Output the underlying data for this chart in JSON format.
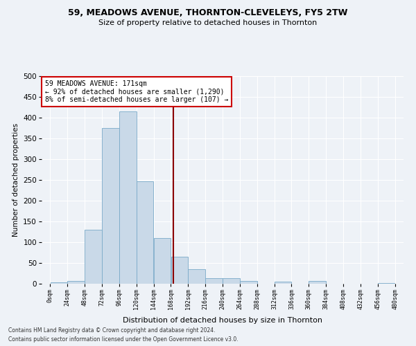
{
  "title1": "59, MEADOWS AVENUE, THORNTON-CLEVELEYS, FY5 2TW",
  "title2": "Size of property relative to detached houses in Thornton",
  "xlabel": "Distribution of detached houses by size in Thornton",
  "ylabel": "Number of detached properties",
  "bar_edges": [
    0,
    24,
    48,
    72,
    96,
    120,
    144,
    168,
    192,
    216,
    240,
    264,
    288,
    312,
    336,
    360,
    384,
    408,
    432,
    456,
    480
  ],
  "bar_heights": [
    3,
    6,
    130,
    375,
    415,
    246,
    110,
    65,
    35,
    14,
    13,
    7,
    0,
    5,
    0,
    6,
    0,
    0,
    0,
    1
  ],
  "bar_color": "#c9d9e8",
  "bar_edge_color": "#7aaac8",
  "property_size": 171,
  "annotation_line1": "59 MEADOWS AVENUE: 171sqm",
  "annotation_line2": "← 92% of detached houses are smaller (1,290)",
  "annotation_line3": "8% of semi-detached houses are larger (107) →",
  "vline_color": "#8b0000",
  "annotation_box_edge": "#cc0000",
  "footer1": "Contains HM Land Registry data © Crown copyright and database right 2024.",
  "footer2": "Contains public sector information licensed under the Open Government Licence v3.0.",
  "ylim": [
    0,
    500
  ],
  "yticks": [
    0,
    50,
    100,
    150,
    200,
    250,
    300,
    350,
    400,
    450,
    500
  ],
  "bg_color": "#eef2f7",
  "grid_color": "#ffffff",
  "title1_fontsize": 9,
  "title2_fontsize": 8
}
